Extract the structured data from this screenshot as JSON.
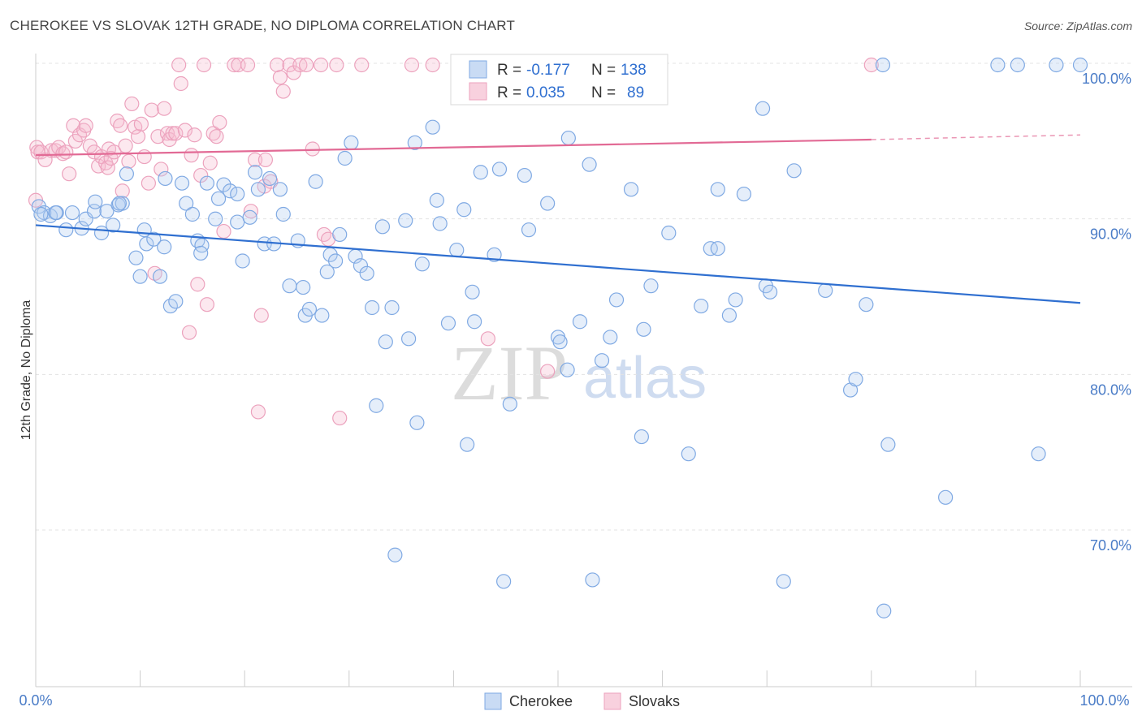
{
  "header": {
    "title": "CHEROKEE VS SLOVAK 12TH GRADE, NO DIPLOMA CORRELATION CHART",
    "source": "Source: ZipAtlas.com"
  },
  "watermark": {
    "zip": "ZIP",
    "atlas": "atlas"
  },
  "colors": {
    "cherokee": "#6fa0e0",
    "cherokee_line": "#2f6fd0",
    "slovaks": "#ef8fb0",
    "slovaks_line": "#e26a95",
    "tick_text": "#4a7cc7"
  },
  "stats": {
    "cherokee": {
      "r_label": "R =",
      "r": "-0.177",
      "n_label": "N =",
      "n": "138"
    },
    "slovaks": {
      "r_label": "R =",
      "r": "0.035",
      "n_label": "N =",
      "n": "89"
    }
  },
  "chart_data": {
    "type": "scatter",
    "title": "CHEROKEE VS SLOVAK 12TH GRADE, NO DIPLOMA CORRELATION CHART",
    "xlabel": "",
    "ylabel": "12th Grade, No Diploma",
    "xlim": [
      0,
      100
    ],
    "ylim": [
      60,
      102
    ],
    "x_tick_labels": [
      "0.0%",
      "100.0%"
    ],
    "y_ticks": [
      70,
      80,
      90,
      100
    ],
    "y_tick_labels": [
      "70.0%",
      "80.0%",
      "90.0%",
      "100.0%"
    ],
    "grid": "horizontal dashed",
    "legend_position": "top-center and bottom-center",
    "series": [
      {
        "name": "Cherokee",
        "trend": {
          "x": [
            0,
            100
          ],
          "y": [
            89.7,
            84.7
          ]
        },
        "points": [
          [
            0.3,
            90.9
          ],
          [
            0.8,
            90.5
          ],
          [
            1.4,
            90.3
          ],
          [
            2.0,
            90.5
          ],
          [
            2.9,
            89.4
          ],
          [
            3.5,
            90.5
          ],
          [
            4.4,
            89.5
          ],
          [
            4.8,
            90.1
          ],
          [
            5.6,
            90.6
          ],
          [
            5.7,
            91.2
          ],
          [
            6.3,
            89.2
          ],
          [
            6.8,
            90.6
          ],
          [
            7.4,
            89.7
          ],
          [
            7.9,
            91.0
          ],
          [
            8.3,
            91.1
          ],
          [
            8.7,
            93.0
          ],
          [
            9.6,
            87.6
          ],
          [
            10.0,
            86.4
          ],
          [
            10.4,
            89.4
          ],
          [
            10.6,
            88.5
          ],
          [
            11.3,
            88.8
          ],
          [
            11.9,
            86.4
          ],
          [
            12.4,
            92.7
          ],
          [
            12.9,
            84.5
          ],
          [
            13.4,
            84.8
          ],
          [
            14.0,
            92.4
          ],
          [
            14.4,
            91.1
          ],
          [
            15.0,
            90.4
          ],
          [
            15.5,
            88.7
          ],
          [
            15.9,
            88.4
          ],
          [
            16.4,
            92.4
          ],
          [
            17.2,
            90.1
          ],
          [
            17.5,
            91.4
          ],
          [
            18.0,
            92.3
          ],
          [
            18.6,
            91.9
          ],
          [
            19.3,
            91.7
          ],
          [
            19.3,
            89.9
          ],
          [
            19.8,
            87.4
          ],
          [
            20.5,
            90.2
          ],
          [
            21.0,
            93.1
          ],
          [
            21.3,
            92.0
          ],
          [
            21.9,
            88.5
          ],
          [
            22.4,
            92.7
          ],
          [
            22.8,
            88.5
          ],
          [
            23.4,
            92.0
          ],
          [
            23.7,
            90.4
          ],
          [
            24.3,
            85.8
          ],
          [
            25.1,
            88.7
          ],
          [
            25.6,
            85.7
          ],
          [
            25.8,
            83.9
          ],
          [
            26.2,
            84.3
          ],
          [
            26.8,
            92.5
          ],
          [
            27.4,
            83.9
          ],
          [
            27.9,
            86.7
          ],
          [
            28.2,
            87.8
          ],
          [
            28.7,
            87.4
          ],
          [
            29.1,
            89.1
          ],
          [
            29.6,
            94.0
          ],
          [
            30.2,
            95.0
          ],
          [
            30.6,
            87.7
          ],
          [
            31.1,
            87.1
          ],
          [
            31.7,
            86.6
          ],
          [
            32.2,
            84.4
          ],
          [
            32.6,
            78.1
          ],
          [
            33.2,
            89.6
          ],
          [
            33.5,
            82.2
          ],
          [
            34.1,
            84.4
          ],
          [
            34.4,
            68.5
          ],
          [
            35.4,
            90.0
          ],
          [
            35.7,
            82.4
          ],
          [
            36.3,
            95.0
          ],
          [
            36.5,
            77.0
          ],
          [
            37.0,
            87.2
          ],
          [
            38.0,
            96.0
          ],
          [
            38.4,
            91.3
          ],
          [
            38.7,
            89.8
          ],
          [
            39.5,
            83.4
          ],
          [
            40.3,
            88.1
          ],
          [
            41.0,
            90.7
          ],
          [
            41.3,
            75.6
          ],
          [
            41.8,
            85.4
          ],
          [
            42.0,
            83.5
          ],
          [
            42.6,
            93.1
          ],
          [
            43.9,
            87.8
          ],
          [
            44.4,
            93.3
          ],
          [
            44.8,
            66.8
          ],
          [
            45.4,
            78.2
          ],
          [
            46.8,
            92.9
          ],
          [
            47.2,
            89.4
          ],
          [
            48.3,
            100.0
          ],
          [
            49.0,
            91.1
          ],
          [
            49.5,
            100.0
          ],
          [
            50.0,
            82.5
          ],
          [
            50.2,
            82.2
          ],
          [
            50.9,
            80.4
          ],
          [
            51.0,
            95.3
          ],
          [
            52.1,
            83.5
          ],
          [
            53.0,
            93.6
          ],
          [
            53.3,
            66.9
          ],
          [
            54.2,
            81.0
          ],
          [
            55.0,
            82.5
          ],
          [
            55.6,
            84.9
          ],
          [
            57.0,
            92.0
          ],
          [
            58.0,
            76.1
          ],
          [
            58.2,
            83.0
          ],
          [
            58.9,
            85.8
          ],
          [
            60.6,
            89.2
          ],
          [
            62.5,
            75.0
          ],
          [
            63.7,
            84.5
          ],
          [
            64.6,
            88.2
          ],
          [
            65.3,
            88.2
          ],
          [
            65.3,
            92.0
          ],
          [
            66.4,
            83.9
          ],
          [
            67.0,
            84.9
          ],
          [
            67.8,
            91.7
          ],
          [
            69.6,
            97.2
          ],
          [
            69.9,
            85.8
          ],
          [
            70.3,
            85.4
          ],
          [
            71.6,
            66.8
          ],
          [
            72.6,
            93.2
          ],
          [
            75.6,
            85.5
          ],
          [
            78.0,
            79.1
          ],
          [
            78.5,
            79.8
          ],
          [
            79.5,
            84.6
          ],
          [
            81.1,
            100.0
          ],
          [
            81.2,
            64.9
          ],
          [
            81.6,
            75.6
          ],
          [
            87.1,
            72.2
          ],
          [
            92.1,
            100.0
          ],
          [
            94.0,
            100.0
          ],
          [
            96.0,
            75.0
          ],
          [
            97.7,
            100.0
          ],
          [
            100.0,
            100.0
          ],
          [
            0.5,
            90.4
          ],
          [
            1.9,
            90.5
          ],
          [
            8.0,
            91.1
          ],
          [
            12.3,
            88.3
          ],
          [
            15.8,
            87.9
          ]
        ]
      },
      {
        "name": "Slovaks",
        "trend": {
          "x": [
            0,
            80,
            100
          ],
          "y": [
            94.2,
            95.2,
            95.5
          ]
        },
        "points": [
          [
            0.0,
            91.3
          ],
          [
            0.1,
            94.7
          ],
          [
            0.2,
            94.4
          ],
          [
            0.5,
            94.4
          ],
          [
            0.9,
            93.9
          ],
          [
            1.5,
            94.5
          ],
          [
            1.9,
            94.5
          ],
          [
            2.2,
            94.7
          ],
          [
            2.6,
            94.3
          ],
          [
            2.9,
            94.4
          ],
          [
            3.2,
            93.0
          ],
          [
            3.6,
            96.1
          ],
          [
            3.8,
            95.1
          ],
          [
            4.2,
            95.5
          ],
          [
            4.6,
            95.8
          ],
          [
            4.8,
            96.1
          ],
          [
            5.2,
            94.8
          ],
          [
            5.6,
            94.4
          ],
          [
            6.0,
            93.5
          ],
          [
            6.3,
            94.1
          ],
          [
            6.7,
            93.7
          ],
          [
            6.9,
            93.4
          ],
          [
            7.0,
            94.6
          ],
          [
            7.2,
            94.0
          ],
          [
            7.5,
            94.4
          ],
          [
            7.8,
            96.4
          ],
          [
            8.1,
            96.1
          ],
          [
            8.3,
            91.9
          ],
          [
            8.6,
            94.8
          ],
          [
            8.9,
            93.8
          ],
          [
            9.2,
            97.5
          ],
          [
            9.5,
            96.0
          ],
          [
            9.8,
            95.4
          ],
          [
            10.1,
            96.2
          ],
          [
            10.4,
            94.1
          ],
          [
            10.8,
            92.4
          ],
          [
            11.1,
            97.1
          ],
          [
            11.4,
            86.6
          ],
          [
            11.7,
            95.4
          ],
          [
            12.0,
            93.3
          ],
          [
            12.3,
            97.2
          ],
          [
            12.6,
            95.6
          ],
          [
            12.8,
            95.2
          ],
          [
            13.1,
            95.6
          ],
          [
            13.4,
            95.6
          ],
          [
            13.7,
            100.0
          ],
          [
            13.9,
            98.8
          ],
          [
            14.3,
            95.8
          ],
          [
            14.7,
            82.8
          ],
          [
            14.9,
            94.2
          ],
          [
            15.2,
            95.5
          ],
          [
            15.5,
            85.9
          ],
          [
            15.8,
            92.9
          ],
          [
            16.1,
            100.0
          ],
          [
            16.4,
            84.6
          ],
          [
            16.7,
            93.7
          ],
          [
            17.0,
            95.6
          ],
          [
            17.3,
            95.4
          ],
          [
            17.6,
            96.3
          ],
          [
            18.0,
            89.3
          ],
          [
            19.0,
            100.0
          ],
          [
            19.4,
            100.0
          ],
          [
            20.3,
            100.0
          ],
          [
            20.6,
            90.6
          ],
          [
            21.0,
            93.9
          ],
          [
            21.3,
            77.7
          ],
          [
            21.6,
            83.9
          ],
          [
            21.9,
            92.2
          ],
          [
            22.0,
            93.9
          ],
          [
            22.5,
            92.5
          ],
          [
            23.1,
            100.0
          ],
          [
            23.4,
            99.2
          ],
          [
            23.7,
            98.3
          ],
          [
            24.3,
            100.0
          ],
          [
            24.7,
            99.5
          ],
          [
            25.3,
            100.0
          ],
          [
            25.9,
            100.0
          ],
          [
            26.5,
            94.6
          ],
          [
            27.3,
            100.0
          ],
          [
            27.6,
            89.1
          ],
          [
            28.0,
            88.8
          ],
          [
            28.8,
            100.0
          ],
          [
            29.1,
            77.3
          ],
          [
            31.2,
            100.0
          ],
          [
            36.0,
            100.0
          ],
          [
            38.0,
            100.0
          ],
          [
            43.3,
            82.4
          ],
          [
            49.0,
            80.3
          ],
          [
            80.0,
            100.0
          ]
        ]
      }
    ]
  },
  "legend": {
    "cherokee": "Cherokee",
    "slovaks": "Slovaks"
  }
}
